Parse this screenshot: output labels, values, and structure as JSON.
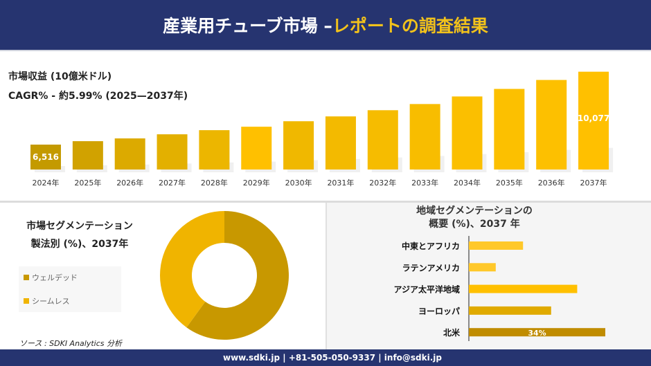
{
  "header": {
    "title_main": "産業用チューブ市場 –",
    "title_accent": "レポートの調査結果"
  },
  "chart_data": [
    {
      "type": "bar",
      "title": "市場収益 (10億米ドル)",
      "subtitle": "CAGR% - 約5.99% (2025—2037年)",
      "categories": [
        "2024年",
        "2025年",
        "2026年",
        "2027年",
        "2028年",
        "2029年",
        "2030年",
        "2031年",
        "2032年",
        "2033年",
        "2034年",
        "2035年",
        "2036年",
        "2037年"
      ],
      "values": [
        6516,
        6684,
        6819,
        7020,
        7222,
        7390,
        7658,
        7894,
        8196,
        8498,
        8868,
        9237,
        9674,
        10077
      ],
      "data_labels": {
        "0": "6,516",
        "13": "10,077"
      },
      "ylim": [
        5300,
        10200
      ],
      "grid": false,
      "colors": [
        "#c49a00",
        "#d1a200",
        "#dcaa00",
        "#e3b000",
        "#ecb600",
        "#ffc000",
        "#f0b800",
        "#f3ba00",
        "#f6bc00",
        "#f8bd00",
        "#fbbf00",
        "#fcc000",
        "#fdc000",
        "#ffc000"
      ]
    },
    {
      "type": "pie",
      "donut": true,
      "title": "市場セグメンテーション",
      "subtitle": "製法別 (%)、2037年",
      "labels": [
        "ウェルデッド",
        "シームレス"
      ],
      "values": [
        60,
        40
      ],
      "colors": [
        "#c89800",
        "#f0b400"
      ],
      "legend": "left"
    },
    {
      "type": "bar",
      "orientation": "horizontal",
      "title": "地域セグメンテーションの",
      "subtitle": "概要 (%)、2037 年",
      "categories": [
        "中東とアフリカ",
        "ラテンアメリカ",
        "アジア太平洋地域",
        "ヨーロッパ",
        "北米"
      ],
      "values": [
        13.5,
        6.7,
        27,
        20.5,
        34
      ],
      "data_labels": {
        "4": "34%"
      },
      "xlim": [
        0,
        34
      ],
      "colors": [
        "#ffc82a",
        "#ffc82a",
        "#ffc000",
        "#e0aa00",
        "#c08c00"
      ]
    }
  ],
  "source": "ソース : SDKI Analytics 分析",
  "footer": "www.sdki.jp | +81-505-050-9337 | info@sdki.jp"
}
